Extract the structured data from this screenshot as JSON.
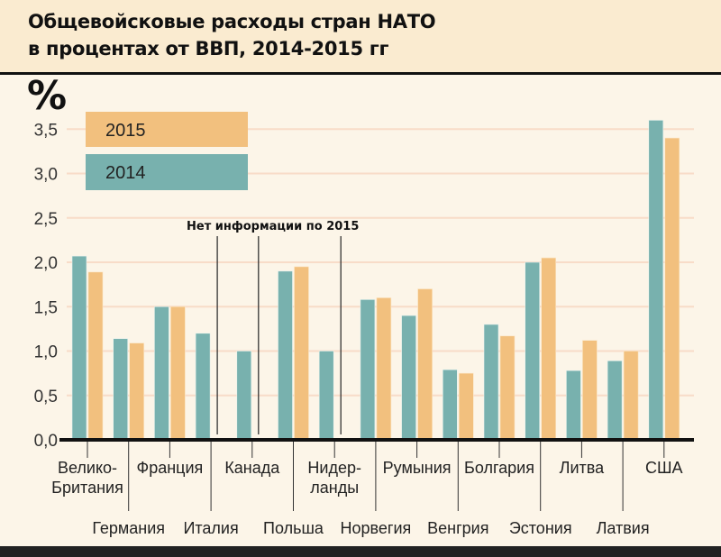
{
  "chart_data": {
    "type": "bar",
    "title": "Общевойсковые расходы стран НАТО в процентах от ВВП, 2014-2015 гг",
    "ylabel": "%",
    "ylim": [
      0,
      3.7
    ],
    "yticks": [
      "0,0",
      "0,5",
      "1,0",
      "1,5",
      "2,0",
      "2,5",
      "3,0",
      "3,5"
    ],
    "ytick_values": [
      0,
      0.5,
      1,
      1.5,
      2,
      2.5,
      3,
      3.5
    ],
    "grid": true,
    "legend_placement": "top-left",
    "annotation": "Нет информации по 2015",
    "categories": [
      "Велико-Британия",
      "Германия",
      "Франция",
      "Италия",
      "Канада",
      "Польша",
      "Нидер-ланды",
      "Норвегия",
      "Румыния",
      "Венгрия",
      "Болгария",
      "Эстония",
      "Литва",
      "Латвия",
      "США"
    ],
    "category_lines": [
      [
        "Велико-",
        "Британия"
      ],
      [
        "Германия"
      ],
      [
        "Франция"
      ],
      [
        "Италия"
      ],
      [
        "Канада"
      ],
      [
        "Польша"
      ],
      [
        "Нидер-",
        "ланды"
      ],
      [
        "Норвегия"
      ],
      [
        "Румыния"
      ],
      [
        "Венгрия"
      ],
      [
        "Болгария"
      ],
      [
        "Эстония"
      ],
      [
        "Литва"
      ],
      [
        "Латвия"
      ],
      [
        "США"
      ]
    ],
    "series": [
      {
        "name": "2014",
        "color": "#78b1ae",
        "values": [
          2.07,
          1.14,
          1.5,
          1.2,
          1.0,
          1.9,
          1.0,
          1.58,
          1.4,
          0.79,
          1.3,
          2.0,
          0.78,
          0.89,
          3.6
        ]
      },
      {
        "name": "2015",
        "color": "#f2c07e",
        "values": [
          1.89,
          1.09,
          1.5,
          null,
          null,
          1.95,
          null,
          1.6,
          1.7,
          0.75,
          1.17,
          2.05,
          1.12,
          1.0,
          3.4
        ]
      }
    ]
  },
  "header": {
    "title_line1": "Общевойсковые расходы стран НАТО",
    "title_line2": "в процентах от ВВП, 2014-2015 гг"
  }
}
